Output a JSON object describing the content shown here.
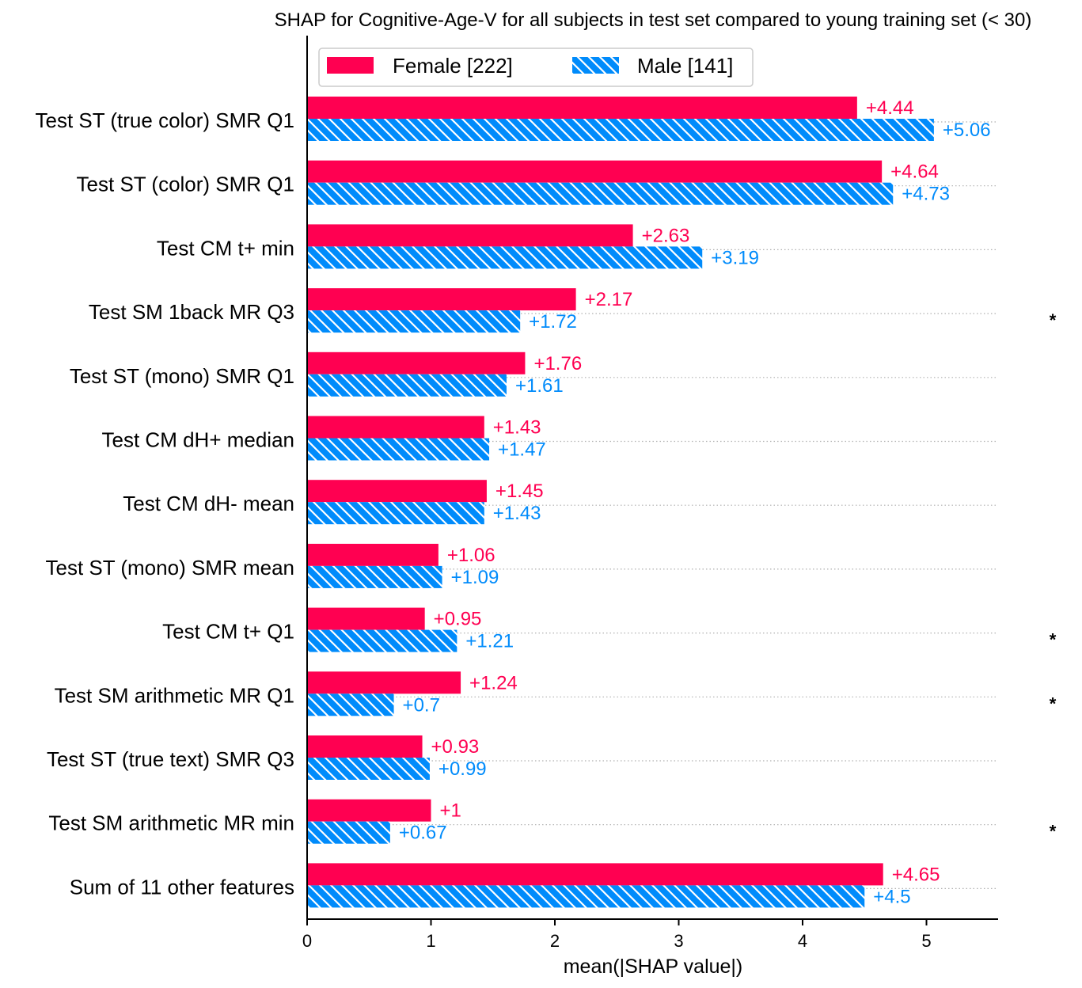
{
  "chart_data": {
    "type": "bar",
    "orientation": "horizontal",
    "title": "SHAP for Cognitive-Age-V for all subjects in test set compared to young training set (< 30)",
    "xlabel": "mean(|SHAP value|)",
    "ylabel": "",
    "xlim": [
      0,
      5.56
    ],
    "xticks": [
      "0",
      "1",
      "2",
      "3",
      "4",
      "5"
    ],
    "xtick_values": [
      0,
      1,
      2,
      3,
      4,
      5
    ],
    "grid": "dotted horizontal guide per feature",
    "legend_position": "top-left",
    "categories": [
      "Test ST (true color) SMR Q1",
      "Test ST (color) SMR Q1",
      "Test CM t+ min",
      "Test SM 1back MR Q3",
      "Test ST (mono) SMR Q1",
      "Test CM dH+ median",
      "Test CM dH- mean",
      "Test ST (mono) SMR mean",
      "Test CM t+ Q1",
      "Test SM arithmetic MR Q1",
      "Test ST (true text) SMR Q3",
      "Test SM arithmetic MR min",
      "Sum of 11 other features"
    ],
    "series": [
      {
        "name": "Female [222]",
        "color": "#ff0051",
        "hatch": false,
        "values": [
          4.44,
          4.64,
          2.63,
          2.17,
          1.76,
          1.43,
          1.45,
          1.06,
          0.95,
          1.24,
          0.93,
          1,
          4.65
        ],
        "labels": [
          "+4.44",
          "+4.64",
          "+2.63",
          "+2.17",
          "+1.76",
          "+1.43",
          "+1.45",
          "+1.06",
          "+0.95",
          "+1.24",
          "+0.93",
          "+1",
          "+4.65"
        ]
      },
      {
        "name": "Male [141]",
        "color": "#008bfb",
        "hatch": true,
        "values": [
          5.06,
          4.73,
          3.19,
          1.72,
          1.61,
          1.47,
          1.43,
          1.09,
          1.21,
          0.7,
          0.99,
          0.67,
          4.5
        ],
        "labels": [
          "+5.06",
          "+4.73",
          "+3.19",
          "+1.72",
          "+1.61",
          "+1.47",
          "+1.43",
          "+1.09",
          "+1.21",
          "+0.7",
          "+0.99",
          "+0.67",
          "+4.5"
        ]
      }
    ],
    "significance_markers": [
      "",
      "",
      "",
      "*",
      "",
      "",
      "",
      "",
      "*",
      "*",
      "",
      "*",
      ""
    ]
  },
  "colors": {
    "axis": "#000000",
    "grid": "#b0b0b0"
  }
}
